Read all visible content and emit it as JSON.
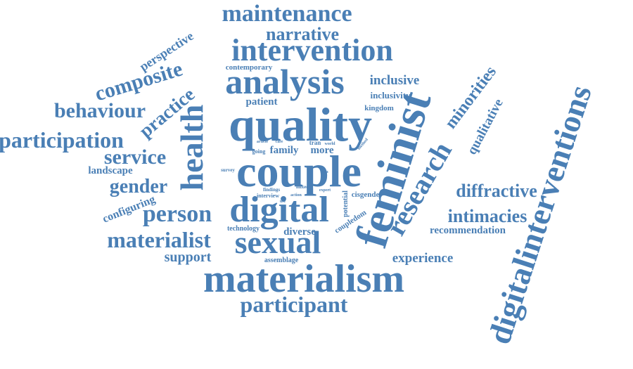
{
  "word_cloud": {
    "color": "#4a7fb5",
    "words": [
      "maintenance",
      "narrative",
      "intervention",
      "perspective",
      "composite",
      "contemporary",
      "analysis",
      "inclusive",
      "inclusivity",
      "minorities",
      "qualitative",
      "feminist",
      "behaviour",
      "practice",
      "health",
      "patient",
      "quality",
      "kingdom",
      "participation",
      "service",
      "family",
      "more",
      "couple",
      "research",
      "landscape",
      "gender",
      "diffractive",
      "configuring",
      "person",
      "digital",
      "intimacies",
      "materialist",
      "sexual",
      "diverse",
      "technology",
      "coupledom",
      "potential",
      "cisgender",
      "recommendation",
      "support",
      "assemblage",
      "experience",
      "materialism",
      "participant",
      "digitalinterventions",
      "going",
      "survey",
      "findings",
      "interview",
      "tran",
      "world",
      "article",
      "care",
      "method",
      "mixed",
      "expert",
      "data",
      "action",
      "use"
    ]
  }
}
